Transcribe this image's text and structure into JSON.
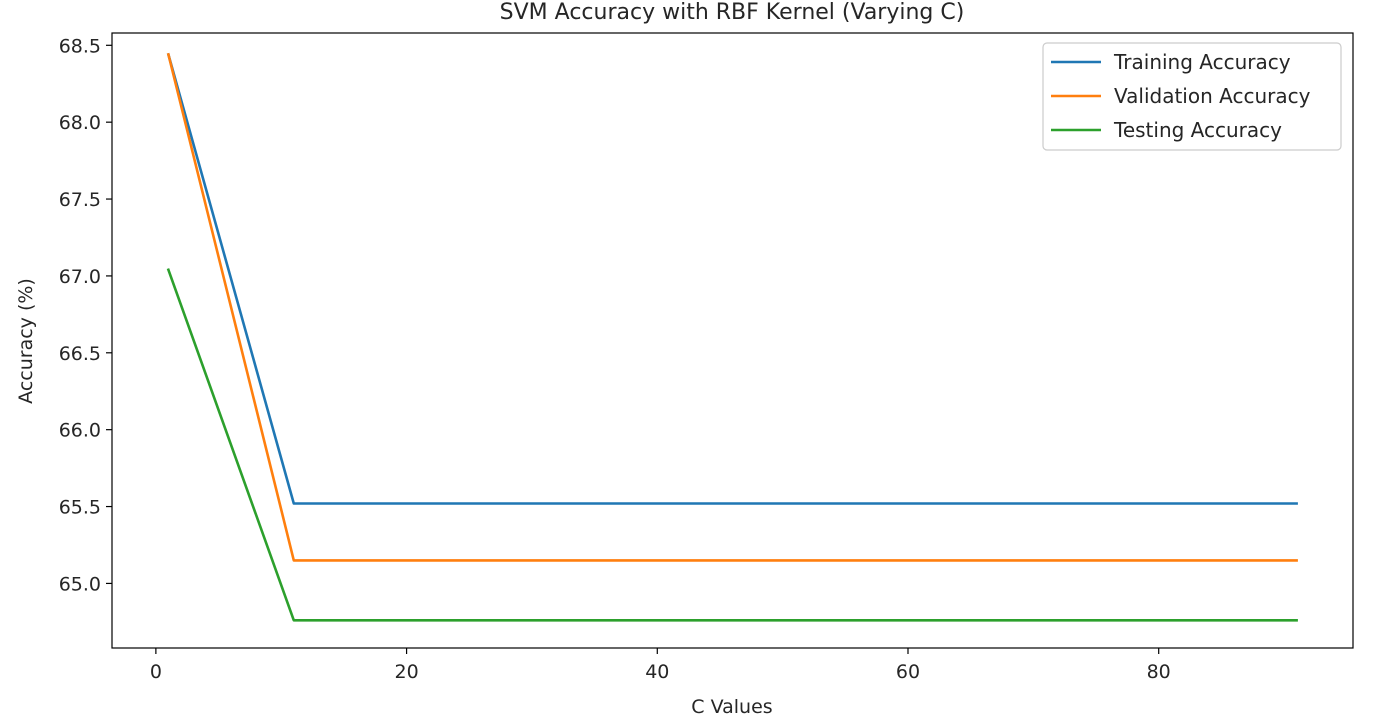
{
  "chart_data": {
    "type": "line",
    "title": "SVM Accuracy with RBF Kernel (Varying C)",
    "xlabel": "C Values",
    "ylabel": "Accuracy (%)",
    "x": [
      1,
      11,
      21,
      31,
      41,
      51,
      61,
      71,
      81,
      91
    ],
    "series": [
      {
        "name": "Training Accuracy",
        "color": "#1f77b4",
        "values": [
          68.44,
          65.52,
          65.52,
          65.52,
          65.52,
          65.52,
          65.52,
          65.52,
          65.52,
          65.52
        ]
      },
      {
        "name": "Validation Accuracy",
        "color": "#ff7f0e",
        "values": [
          68.44,
          65.15,
          65.15,
          65.15,
          65.15,
          65.15,
          65.15,
          65.15,
          65.15,
          65.15
        ]
      },
      {
        "name": "Testing Accuracy",
        "color": "#2ca02c",
        "values": [
          67.04,
          64.76,
          64.76,
          64.76,
          64.76,
          64.76,
          64.76,
          64.76,
          64.76,
          64.76
        ]
      }
    ],
    "xlim": [
      -3.5,
      95.5
    ],
    "ylim": [
      64.58,
      68.58
    ],
    "xticks": [
      "0",
      "20",
      "40",
      "60",
      "80"
    ],
    "yticks": [
      "65.0",
      "65.5",
      "66.0",
      "66.5",
      "67.0",
      "67.5",
      "68.0",
      "68.5"
    ],
    "grid": false,
    "legend_position": "upper right"
  }
}
